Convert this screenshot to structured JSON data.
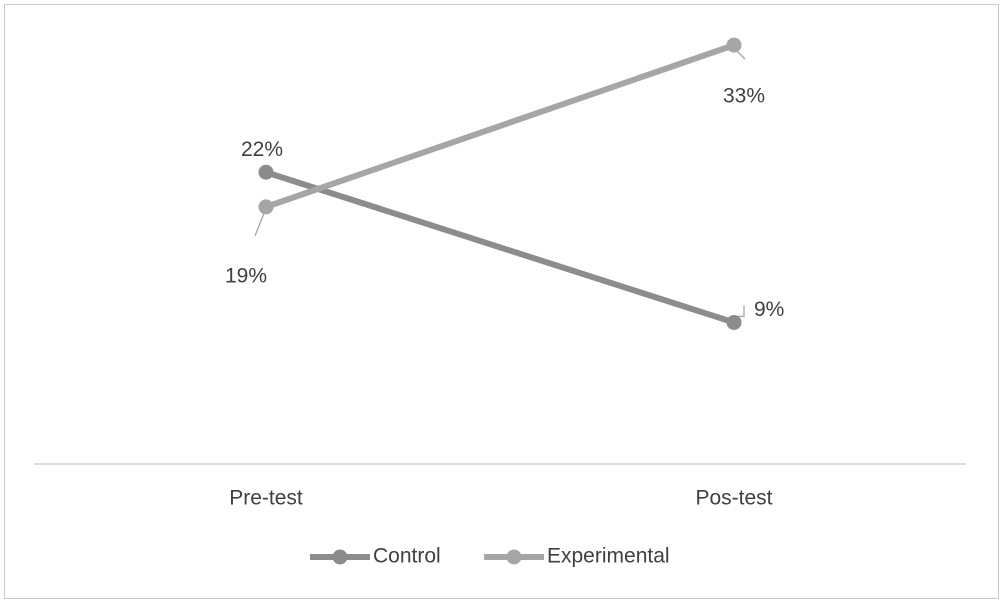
{
  "chart_data": {
    "type": "line",
    "categories": [
      "Pre-test",
      "Pos-test"
    ],
    "series": [
      {
        "name": "Control",
        "values": [
          22,
          9
        ],
        "labels": [
          "22%",
          "9%"
        ],
        "color": "#8c8c8c"
      },
      {
        "name": "Experimental",
        "values": [
          19,
          33
        ],
        "labels": [
          "19%",
          "33%"
        ],
        "color": "#a6a6a6"
      }
    ],
    "ylim": [
      -1,
      35
    ],
    "grid": false,
    "legend": "bottom",
    "axis_color": "#d0d0d0"
  }
}
